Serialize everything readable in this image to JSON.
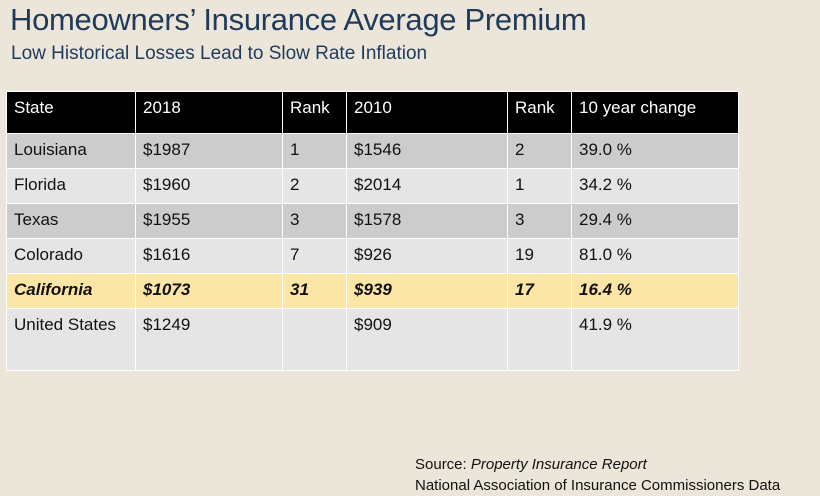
{
  "header": {
    "title": "Homeowners’ Insurance Average Premium",
    "subtitle": "Low Historical Losses Lead to Slow Rate Inflation"
  },
  "table": {
    "columns": [
      "State",
      "2018",
      "Rank",
      "2010",
      "Rank",
      "10 year change"
    ],
    "rows": [
      [
        "Louisiana",
        "$1987",
        "1",
        "$1546",
        "2",
        "39.0 %"
      ],
      [
        "Florida",
        "$1960",
        "2",
        "$2014",
        "1",
        "34.2 %"
      ],
      [
        "Texas",
        "$1955",
        "3",
        "$1578",
        "3",
        "29.4 %"
      ],
      [
        "Colorado",
        "$1616",
        "7",
        "$926",
        "19",
        "81.0 %"
      ],
      [
        "California",
        "$1073",
        "31",
        "$939",
        "17",
        "16.4 %"
      ],
      [
        "United States",
        "$1249",
        "",
        "$909",
        "",
        "41.9 %"
      ]
    ]
  },
  "source": {
    "label": "Source:",
    "title": "Property Insurance Report",
    "org": "National Association of Insurance Commissioners Data"
  }
}
